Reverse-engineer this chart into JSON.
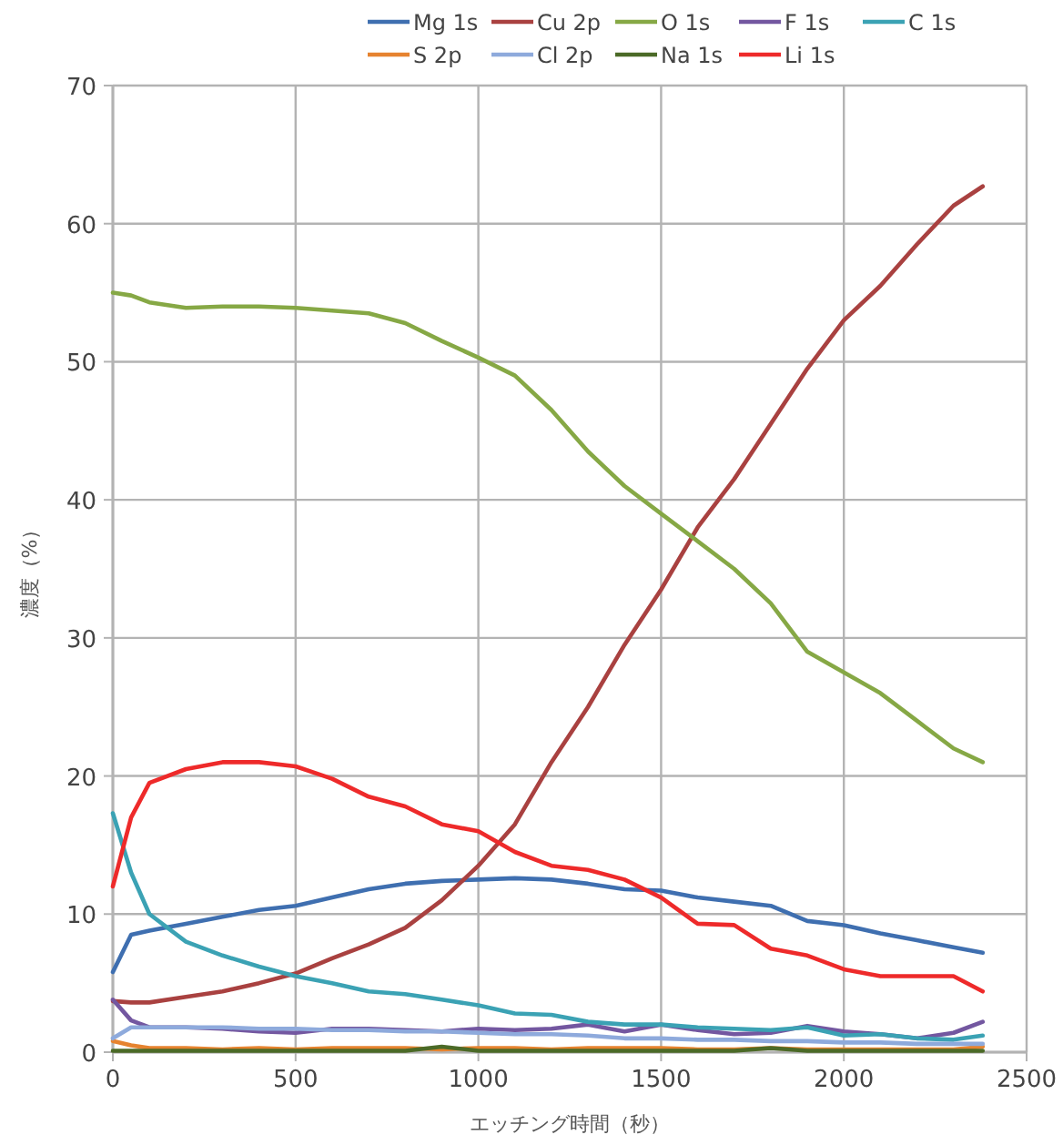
{
  "chart_data": {
    "type": "line",
    "xlabel": "エッチング時間（秒）",
    "ylabel": "濃度（%）",
    "xlim": [
      0,
      2500
    ],
    "xticks": [
      0,
      500,
      1000,
      1500,
      2000,
      2500
    ],
    "ylim": [
      0,
      70
    ],
    "yticks": [
      0,
      10,
      20,
      30,
      40,
      50,
      60,
      70
    ],
    "grid": true,
    "legend": "top",
    "marker": "none",
    "line_style": "solid",
    "x": [
      0,
      50,
      100,
      200,
      300,
      400,
      500,
      600,
      700,
      800,
      900,
      1000,
      1100,
      1200,
      1300,
      1400,
      1500,
      1600,
      1700,
      1800,
      1900,
      2000,
      2100,
      2200,
      2300,
      2380
    ],
    "series": [
      {
        "name": "Mg 1s",
        "color": "#3f6fb0",
        "values": [
          5.8,
          8.5,
          8.8,
          9.3,
          9.8,
          10.3,
          10.6,
          11.2,
          11.8,
          12.2,
          12.4,
          12.5,
          12.6,
          12.5,
          12.2,
          11.8,
          11.7,
          11.2,
          10.9,
          10.6,
          9.5,
          9.2,
          8.6,
          8.1,
          7.6,
          7.2
        ]
      },
      {
        "name": "Cu 2p",
        "color": "#a94140",
        "values": [
          3.7,
          3.6,
          3.6,
          4.0,
          4.4,
          5.0,
          5.7,
          6.8,
          7.8,
          9.0,
          11.0,
          13.5,
          16.5,
          21,
          25,
          29.5,
          33.5,
          38,
          41.5,
          45.5,
          49.5,
          53,
          55.5,
          58.5,
          61.3,
          62.7
        ]
      },
      {
        "name": "O 1s",
        "color": "#86a845",
        "values": [
          55,
          54.8,
          54.3,
          53.9,
          54,
          54,
          53.9,
          53.7,
          53.5,
          52.8,
          51.5,
          50.3,
          49.0,
          46.5,
          43.5,
          41,
          39,
          37,
          35,
          32.5,
          29,
          27.5,
          26,
          24,
          22,
          21
        ]
      },
      {
        "name": "F 1s",
        "color": "#7357a0",
        "values": [
          3.8,
          2.3,
          1.8,
          1.8,
          1.7,
          1.5,
          1.4,
          1.7,
          1.7,
          1.6,
          1.5,
          1.7,
          1.6,
          1.7,
          2.0,
          1.5,
          2.0,
          1.6,
          1.3,
          1.4,
          1.9,
          1.5,
          1.3,
          1.0,
          1.4,
          2.2
        ]
      },
      {
        "name": "C 1s",
        "color": "#3ba2b4",
        "values": [
          17.3,
          13,
          10,
          8.0,
          7.0,
          6.2,
          5.5,
          5.0,
          4.4,
          4.2,
          3.8,
          3.4,
          2.8,
          2.7,
          2.2,
          2.0,
          2.0,
          1.8,
          1.7,
          1.6,
          1.8,
          1.2,
          1.3,
          1.0,
          0.9,
          1.2
        ]
      },
      {
        "name": "S 2p",
        "color": "#e6832f",
        "values": [
          0.8,
          0.5,
          0.3,
          0.3,
          0.2,
          0.3,
          0.2,
          0.3,
          0.3,
          0.3,
          0.2,
          0.3,
          0.3,
          0.2,
          0.3,
          0.3,
          0.3,
          0.2,
          0.2,
          0.3,
          0.2,
          0.2,
          0.2,
          0.2,
          0.2,
          0.4
        ]
      },
      {
        "name": "Cl 2p",
        "color": "#8eaadc",
        "values": [
          1.0,
          1.8,
          1.8,
          1.8,
          1.8,
          1.7,
          1.7,
          1.6,
          1.6,
          1.5,
          1.5,
          1.4,
          1.3,
          1.3,
          1.2,
          1.0,
          1.0,
          0.9,
          0.9,
          0.8,
          0.8,
          0.7,
          0.7,
          0.6,
          0.6,
          0.6
        ]
      },
      {
        "name": "Na 1s",
        "color": "#4b6a27",
        "values": [
          0.1,
          0.1,
          0.1,
          0.1,
          0.1,
          0.1,
          0.1,
          0.1,
          0.1,
          0.1,
          0.4,
          0.1,
          0.1,
          0.1,
          0.1,
          0.1,
          0.1,
          0.1,
          0.1,
          0.3,
          0.1,
          0.1,
          0.1,
          0.1,
          0.1,
          0.1
        ]
      },
      {
        "name": "Li 1s",
        "color": "#ee2a2a",
        "values": [
          12,
          17,
          19.5,
          20.5,
          21.0,
          21.0,
          20.7,
          19.8,
          18.5,
          17.8,
          16.5,
          16.0,
          14.5,
          13.5,
          13.2,
          12.5,
          11.2,
          9.3,
          9.2,
          7.5,
          7.0,
          6.0,
          5.5,
          5.5,
          5.5,
          4.4
        ]
      }
    ]
  }
}
